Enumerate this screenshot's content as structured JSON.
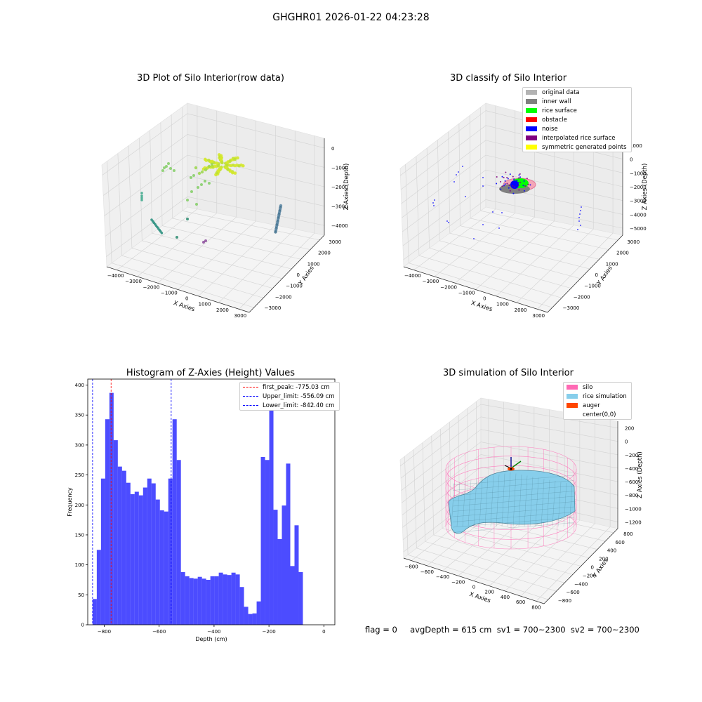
{
  "suptitle": "GHGHR01 2026-01-22 04:23:28",
  "panels": {
    "raw": {
      "title": "3D Plot of Silo Interior(row data)",
      "xlabel": "X Axies",
      "ylabel": "Y Axies",
      "zlabel": "Z Axies (Depth)",
      "xticks": [
        "−4000",
        "−3000",
        "−2000",
        "−1000",
        "0",
        "1000",
        "2000",
        "3000"
      ],
      "yticks": [
        "3000",
        "2000",
        "1000",
        "0",
        "−1000",
        "−2000",
        "−3000"
      ],
      "zticks": [
        "0",
        "−1000",
        "−2000",
        "−3000",
        "−4000"
      ]
    },
    "classify": {
      "title": "3D classify of Silo Interior",
      "xlabel": "X Axies",
      "ylabel": "Y Axies",
      "zlabel": "Z Axies (Depth)",
      "xticks": [
        "−4000",
        "−3000",
        "−2000",
        "−1000",
        "0",
        "1000",
        "2000",
        "3000"
      ],
      "yticks": [
        "3000",
        "2000",
        "1000",
        "0",
        "−1000",
        "−2000",
        "−3000"
      ],
      "zticks": [
        "1000",
        "0",
        "−1000",
        "−2000",
        "−3000",
        "−4000",
        "−5000"
      ],
      "legend": [
        {
          "label": "original data",
          "color": "#b3b3b3"
        },
        {
          "label": "inner wall",
          "color": "#808080"
        },
        {
          "label": "rice surface",
          "color": "#00ff00"
        },
        {
          "label": "obstacle",
          "color": "#ff0000"
        },
        {
          "label": "noise",
          "color": "#0000ff"
        },
        {
          "label": "interpolated rice surface",
          "color": "#800080"
        },
        {
          "label": "symmetric generated points",
          "color": "#ffff00"
        }
      ]
    },
    "simulation": {
      "title": "3D simulation of Silo Interior",
      "xlabel": "X Axies",
      "ylabel": "Y Axies",
      "zlabel": "Z Axies (Depth)",
      "xticks": [
        "−800",
        "−600",
        "−400",
        "−200",
        "0",
        "200",
        "400",
        "600",
        "800"
      ],
      "yticks": [
        "800",
        "600",
        "400",
        "200",
        "0",
        "−200",
        "−400",
        "−600",
        "−800"
      ],
      "zticks": [
        "200",
        "0",
        "−200",
        "−400",
        "−600",
        "−800",
        "−1000",
        "−1200"
      ],
      "legend": [
        {
          "label": "silo",
          "color": "#ff69b4"
        },
        {
          "label": "rice simulation",
          "color": "#87ceeb"
        },
        {
          "label": "auger",
          "color": "#ff4500"
        },
        {
          "label": "center(0,0)",
          "color": ""
        }
      ]
    }
  },
  "footer": "flag = 0     avgDepth = 615 cm  sv1 = 700~2300  sv2 = 700~2300",
  "chart_data": {
    "type": "bar",
    "title": "Histogram of Z-Axies (Height) Values",
    "xlabel": "Depth (cm)",
    "ylabel": "Frequency",
    "xlim": [
      -860,
      40
    ],
    "ylim": [
      0,
      410
    ],
    "xticks": [
      -800,
      -600,
      -400,
      -200,
      0
    ],
    "yticks": [
      0,
      50,
      100,
      150,
      200,
      250,
      300,
      350,
      400
    ],
    "bin_start": -842.4,
    "bin_width": 15.32,
    "values": [
      43,
      125,
      244,
      343,
      387,
      308,
      264,
      257,
      237,
      218,
      222,
      216,
      229,
      244,
      236,
      209,
      191,
      189,
      244,
      343,
      275,
      88,
      81,
      78,
      77,
      80,
      77,
      75,
      81,
      81,
      87,
      84,
      83,
      87,
      84,
      63,
      30,
      18,
      19,
      39,
      280,
      275,
      377,
      192,
      143,
      199,
      269,
      98,
      166,
      88
    ],
    "bar_color": "#0000ff",
    "vlines": [
      {
        "label": "first_peak: -775.03 cm",
        "x": -775.03,
        "color": "#ff0000"
      },
      {
        "label": "Upper_limit: -556.09 cm",
        "x": -556.09,
        "color": "#0000ff"
      },
      {
        "label": "Lower_limit: -842.40 cm",
        "x": -842.4,
        "color": "#0000ff"
      }
    ],
    "legend_position": "top-right"
  }
}
